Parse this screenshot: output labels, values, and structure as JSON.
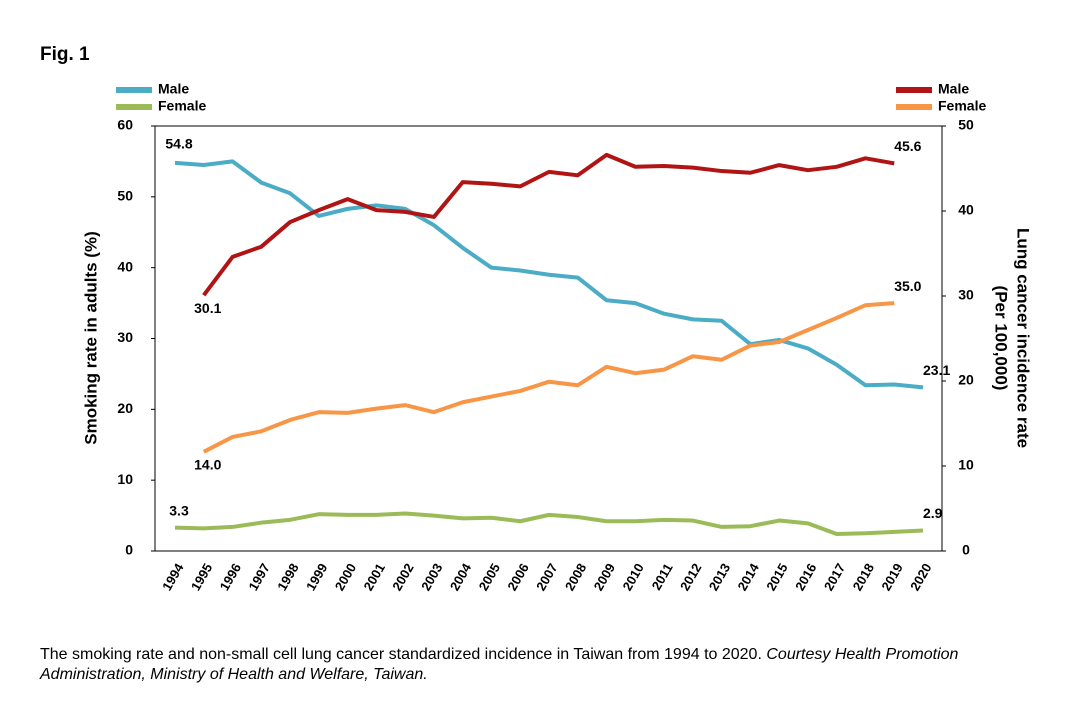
{
  "figure_label": "Fig. 1",
  "caption": "The smoking rate and non-small cell lung cancer standardized incidence in Taiwan from 1994 to 2020.",
  "credit": "Courtesy Health Promotion Administration, Ministry of Health and Welfare, Taiwan.",
  "chart_data": {
    "type": "line",
    "y_label": "Smoking rate in adults (%)",
    "y2_label": [
      "Lung cancer incidence rate",
      "(Per 100,000)"
    ],
    "categories": [
      "1994",
      "1995",
      "1996",
      "1997",
      "1998",
      "1999",
      "2000",
      "2001",
      "2002",
      "2003",
      "2004",
      "2005",
      "2006",
      "2007",
      "2008",
      "2009",
      "2010",
      "2011",
      "2012",
      "2013",
      "2014",
      "2015",
      "2016",
      "2017",
      "2018",
      "2019",
      "2020"
    ],
    "ylim": [
      0,
      60
    ],
    "yticks": [
      0,
      10,
      20,
      30,
      40,
      50,
      60
    ],
    "y2lim": [
      0,
      50
    ],
    "y2ticks": [
      0,
      10,
      20,
      30,
      40,
      50
    ],
    "series": [
      {
        "name": "Male",
        "color": "#4bacc6",
        "axis": "y",
        "values": [
          54.8,
          54.5,
          55.0,
          52.0,
          50.5,
          47.3,
          48.3,
          48.8,
          48.3,
          46.0,
          42.8,
          40.0,
          39.6,
          39.0,
          38.6,
          35.4,
          35.0,
          33.5,
          32.7,
          32.5,
          29.2,
          29.8,
          28.6,
          26.3,
          23.4,
          23.5,
          23.1
        ],
        "value_labels": [
          "54.8",
          null,
          null,
          null,
          null,
          null,
          null,
          null,
          null,
          null,
          null,
          null,
          null,
          null,
          null,
          null,
          null,
          null,
          null,
          null,
          null,
          null,
          null,
          null,
          null,
          null,
          "23.1"
        ]
      },
      {
        "name": "Female",
        "color": "#9bbb59",
        "axis": "y",
        "values": [
          3.3,
          3.2,
          3.4,
          4.0,
          4.4,
          5.2,
          5.1,
          5.1,
          5.3,
          5.0,
          4.6,
          4.7,
          4.2,
          5.1,
          4.8,
          4.2,
          4.2,
          4.4,
          4.3,
          3.4,
          3.5,
          4.3,
          3.9,
          2.4,
          2.5,
          2.7,
          2.9
        ],
        "value_labels": [
          "3.3",
          null,
          null,
          null,
          null,
          null,
          null,
          null,
          null,
          null,
          null,
          null,
          null,
          null,
          null,
          null,
          null,
          null,
          null,
          null,
          null,
          null,
          null,
          null,
          null,
          null,
          "2.9"
        ]
      },
      {
        "name": "Male",
        "color": "#b01414",
        "axis": "y2",
        "values": [
          null,
          30.1,
          34.6,
          35.8,
          38.7,
          40.1,
          41.4,
          40.1,
          39.9,
          39.3,
          43.4,
          43.2,
          42.9,
          44.6,
          44.2,
          46.6,
          45.2,
          45.3,
          45.1,
          44.7,
          44.5,
          45.4,
          44.8,
          45.2,
          46.2,
          45.6,
          null
        ],
        "value_labels": [
          null,
          "30.1",
          null,
          null,
          null,
          null,
          null,
          null,
          null,
          null,
          null,
          null,
          null,
          null,
          null,
          null,
          null,
          null,
          null,
          null,
          null,
          null,
          null,
          null,
          null,
          "45.6",
          null
        ]
      },
      {
        "name": "Female",
        "color": "#f79646",
        "axis": "y",
        "values": [
          null,
          14.0,
          16.1,
          16.9,
          18.5,
          19.6,
          19.5,
          20.1,
          20.6,
          19.6,
          21.0,
          21.8,
          22.6,
          23.9,
          23.4,
          26.0,
          25.1,
          25.6,
          27.5,
          27.0,
          29.0,
          29.5,
          31.2,
          32.9,
          34.7,
          35.0,
          null
        ],
        "value_labels": [
          null,
          "14.0",
          null,
          null,
          null,
          null,
          null,
          null,
          null,
          null,
          null,
          null,
          null,
          null,
          null,
          null,
          null,
          null,
          null,
          null,
          null,
          null,
          null,
          null,
          null,
          "35.0",
          null
        ]
      }
    ]
  }
}
